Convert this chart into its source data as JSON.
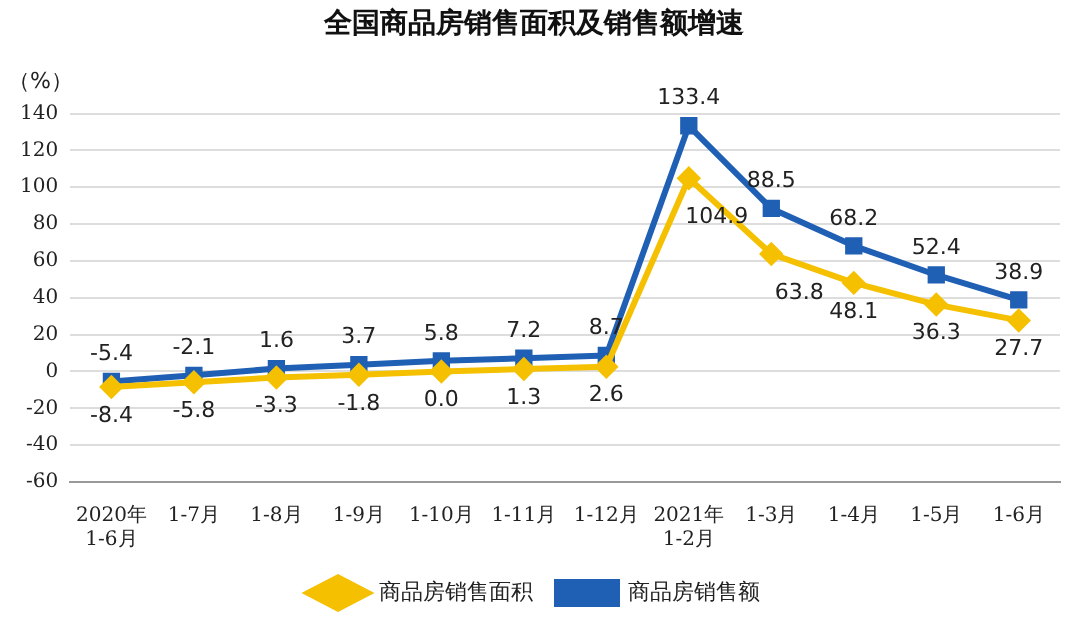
{
  "chart_data": {
    "type": "line",
    "title": "全国商品房销售面积及销售额增速",
    "ylabel": "（%）",
    "categories": [
      "2020年\n1-6月",
      "1-7月",
      "1-8月",
      "1-9月",
      "1-10月",
      "1-11月",
      "1-12月",
      "2021年\n1-2月",
      "1-3月",
      "1-4月",
      "1-5月",
      "1-6月"
    ],
    "series": [
      {
        "name": "商品房销售面积",
        "color": "#f5c000",
        "marker": "diamond",
        "values": [
          -8.4,
          -5.8,
          -3.3,
          -1.8,
          0.0,
          1.3,
          2.6,
          104.9,
          63.8,
          48.1,
          36.3,
          27.7
        ],
        "value_labels": [
          "-8.4",
          "-5.8",
          "-3.3",
          "-1.8",
          "0.0",
          "1.3",
          "2.6",
          "104.9",
          "63.8",
          "48.1",
          "36.3",
          "27.7"
        ]
      },
      {
        "name": "商品房销售额",
        "color": "#1f5fb4",
        "marker": "square",
        "values": [
          -5.4,
          -2.1,
          1.6,
          3.7,
          5.8,
          7.2,
          8.7,
          133.4,
          88.5,
          68.2,
          52.4,
          38.9
        ],
        "value_labels": [
          "-5.4",
          "-2.1",
          "1.6",
          "3.7",
          "5.8",
          "7.2",
          "8.7",
          "133.4",
          "88.5",
          "68.2",
          "52.4",
          "38.9"
        ]
      }
    ],
    "ylim": [
      -60,
      140
    ],
    "yticks": [
      -60,
      -40,
      -20,
      0,
      20,
      40,
      60,
      80,
      100,
      120,
      140
    ],
    "grid": "y",
    "legend": "bottom"
  }
}
